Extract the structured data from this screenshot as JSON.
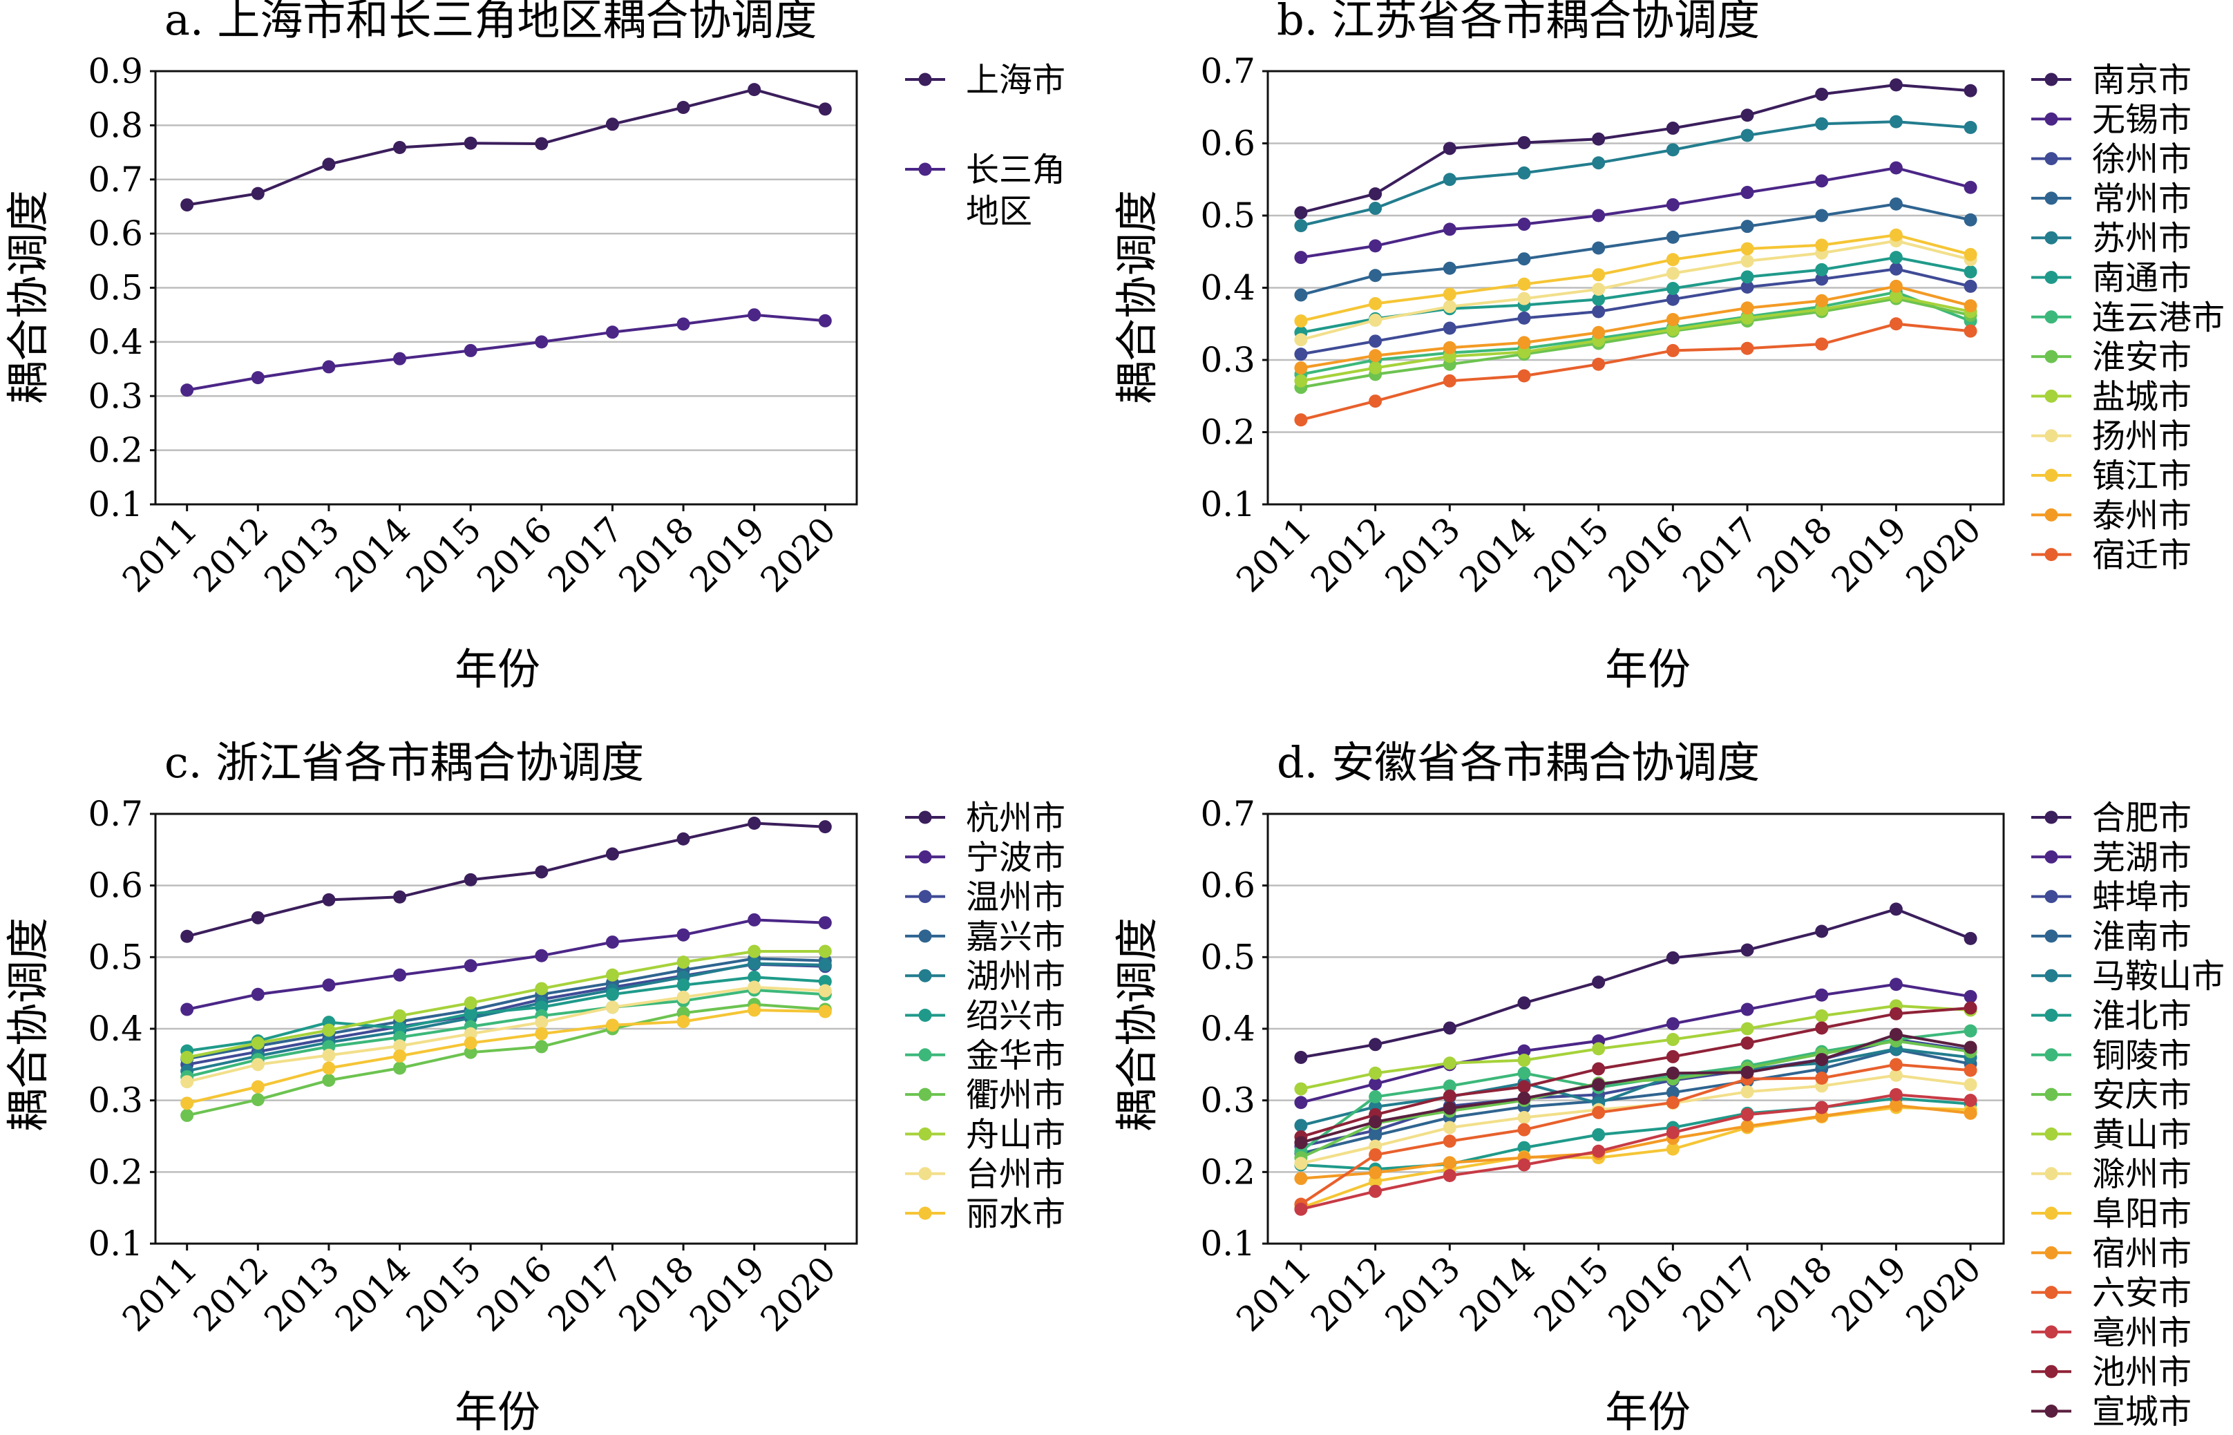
{
  "chart_data": [
    {
      "type": "line",
      "title": "a. 上海市和长三角地区耦合协调度",
      "xlabel": "年份",
      "ylabel": "耦合协调度",
      "x": [
        2011,
        2012,
        2013,
        2014,
        2015,
        2016,
        2017,
        2018,
        2019,
        2020
      ],
      "ylim": [
        0.1,
        0.9
      ],
      "yticks": [
        "0.1",
        "0.2",
        "0.3",
        "0.4",
        "0.5",
        "0.6",
        "0.7",
        "0.8",
        "0.9"
      ],
      "grid": true,
      "legend": "right",
      "series": [
        {
          "name": "上海市",
          "color": "#3b1e5c",
          "values": [
            0.653,
            0.674,
            0.728,
            0.759,
            0.767,
            0.766,
            0.802,
            0.833,
            0.866,
            0.83
          ]
        },
        {
          "name": "长三角地区",
          "color": "#4b2687",
          "values": [
            0.311,
            0.334,
            0.354,
            0.369,
            0.384,
            0.4,
            0.418,
            0.433,
            0.45,
            0.439
          ]
        }
      ]
    },
    {
      "type": "line",
      "title": "b. 江苏省各市耦合协调度",
      "xlabel": "年份",
      "ylabel": "耦合协调度",
      "x": [
        2011,
        2012,
        2013,
        2014,
        2015,
        2016,
        2017,
        2018,
        2019,
        2020
      ],
      "ylim": [
        0.1,
        0.7
      ],
      "yticks": [
        "0.1",
        "0.2",
        "0.3",
        "0.4",
        "0.5",
        "0.6",
        "0.7"
      ],
      "grid": true,
      "legend": "right",
      "series": [
        {
          "name": "南京市",
          "color": "#3b1e5c",
          "values": [
            0.504,
            0.53,
            0.593,
            0.601,
            0.606,
            0.621,
            0.639,
            0.668,
            0.681,
            0.673
          ]
        },
        {
          "name": "无锡市",
          "color": "#4b2687",
          "values": [
            0.442,
            0.458,
            0.481,
            0.488,
            0.5,
            0.515,
            0.532,
            0.548,
            0.566,
            0.539
          ]
        },
        {
          "name": "徐州市",
          "color": "#3f4b96",
          "values": [
            0.308,
            0.326,
            0.344,
            0.358,
            0.367,
            0.384,
            0.401,
            0.412,
            0.426,
            0.402
          ]
        },
        {
          "name": "常州市",
          "color": "#2f6490",
          "values": [
            0.39,
            0.417,
            0.427,
            0.44,
            0.455,
            0.47,
            0.485,
            0.5,
            0.516,
            0.494
          ]
        },
        {
          "name": "苏州市",
          "color": "#227d8e",
          "values": [
            0.486,
            0.51,
            0.55,
            0.559,
            0.573,
            0.591,
            0.611,
            0.627,
            0.63,
            0.622
          ]
        },
        {
          "name": "南通市",
          "color": "#1f9a8a",
          "values": [
            0.338,
            0.357,
            0.371,
            0.376,
            0.384,
            0.399,
            0.415,
            0.425,
            0.442,
            0.422
          ]
        },
        {
          "name": "连云港市",
          "color": "#3cb87a",
          "values": [
            0.28,
            0.3,
            0.31,
            0.316,
            0.33,
            0.345,
            0.36,
            0.374,
            0.394,
            0.354
          ]
        },
        {
          "name": "淮安市",
          "color": "#6cc350",
          "values": [
            0.262,
            0.28,
            0.294,
            0.308,
            0.323,
            0.34,
            0.354,
            0.367,
            0.385,
            0.362
          ]
        },
        {
          "name": "盐城市",
          "color": "#a6d23a",
          "values": [
            0.271,
            0.289,
            0.305,
            0.311,
            0.327,
            0.342,
            0.358,
            0.37,
            0.388,
            0.367
          ]
        },
        {
          "name": "扬州市",
          "color": "#f2df8a",
          "values": [
            0.328,
            0.355,
            0.374,
            0.385,
            0.398,
            0.42,
            0.437,
            0.448,
            0.465,
            0.439
          ]
        },
        {
          "name": "镇江市",
          "color": "#f5c535",
          "values": [
            0.354,
            0.378,
            0.391,
            0.405,
            0.418,
            0.439,
            0.454,
            0.459,
            0.473,
            0.446
          ]
        },
        {
          "name": "泰州市",
          "color": "#f39a24",
          "values": [
            0.289,
            0.306,
            0.317,
            0.324,
            0.338,
            0.356,
            0.372,
            0.382,
            0.402,
            0.375
          ]
        },
        {
          "name": "宿迁市",
          "color": "#e8602c",
          "values": [
            0.217,
            0.243,
            0.271,
            0.278,
            0.294,
            0.313,
            0.316,
            0.322,
            0.35,
            0.34
          ]
        }
      ]
    },
    {
      "type": "line",
      "title": "c. 浙江省各市耦合协调度",
      "xlabel": "年份",
      "ylabel": "耦合协调度",
      "x": [
        2011,
        2012,
        2013,
        2014,
        2015,
        2016,
        2017,
        2018,
        2019,
        2020
      ],
      "ylim": [
        0.1,
        0.7
      ],
      "yticks": [
        "0.1",
        "0.2",
        "0.3",
        "0.4",
        "0.5",
        "0.6",
        "0.7"
      ],
      "grid": true,
      "legend": "right",
      "series": [
        {
          "name": "杭州市",
          "color": "#3b1e5c",
          "values": [
            0.529,
            0.555,
            0.58,
            0.584,
            0.608,
            0.619,
            0.644,
            0.665,
            0.687,
            0.682
          ]
        },
        {
          "name": "宁波市",
          "color": "#4b2687",
          "values": [
            0.427,
            0.448,
            0.461,
            0.475,
            0.488,
            0.502,
            0.521,
            0.531,
            0.552,
            0.548
          ]
        },
        {
          "name": "温州市",
          "color": "#3f4b96",
          "values": [
            0.35,
            0.368,
            0.386,
            0.403,
            0.418,
            0.441,
            0.458,
            0.474,
            0.49,
            0.487
          ]
        },
        {
          "name": "嘉兴市",
          "color": "#2f6490",
          "values": [
            0.358,
            0.376,
            0.393,
            0.41,
            0.426,
            0.448,
            0.464,
            0.482,
            0.498,
            0.495
          ]
        },
        {
          "name": "湖州市",
          "color": "#227d8e",
          "values": [
            0.341,
            0.362,
            0.381,
            0.396,
            0.415,
            0.436,
            0.454,
            0.472,
            0.491,
            0.489
          ]
        },
        {
          "name": "绍兴市",
          "color": "#1f9a8a",
          "values": [
            0.369,
            0.383,
            0.409,
            0.401,
            0.421,
            0.43,
            0.448,
            0.461,
            0.472,
            0.466
          ]
        },
        {
          "name": "金华市",
          "color": "#3cb87a",
          "values": [
            0.333,
            0.357,
            0.375,
            0.388,
            0.403,
            0.418,
            0.43,
            0.439,
            0.454,
            0.448
          ]
        },
        {
          "name": "衢州市",
          "color": "#6cc350",
          "values": [
            0.279,
            0.301,
            0.328,
            0.345,
            0.367,
            0.375,
            0.4,
            0.422,
            0.434,
            0.427
          ]
        },
        {
          "name": "舟山市",
          "color": "#a6d23a",
          "values": [
            0.36,
            0.38,
            0.398,
            0.418,
            0.436,
            0.456,
            0.475,
            0.493,
            0.508,
            0.508
          ]
        },
        {
          "name": "台州市",
          "color": "#f2df8a",
          "values": [
            0.326,
            0.35,
            0.363,
            0.376,
            0.393,
            0.409,
            0.43,
            0.444,
            0.458,
            0.453
          ]
        },
        {
          "name": "丽水市",
          "color": "#f5c535",
          "values": [
            0.296,
            0.319,
            0.345,
            0.362,
            0.38,
            0.393,
            0.405,
            0.41,
            0.426,
            0.424
          ]
        }
      ]
    },
    {
      "type": "line",
      "title": "d. 安徽省各市耦合协调度",
      "xlabel": "年份",
      "ylabel": "耦合协调度",
      "x": [
        2011,
        2012,
        2013,
        2014,
        2015,
        2016,
        2017,
        2018,
        2019,
        2020
      ],
      "ylim": [
        0.1,
        0.7
      ],
      "yticks": [
        "0.1",
        "0.2",
        "0.3",
        "0.4",
        "0.5",
        "0.6",
        "0.7"
      ],
      "grid": true,
      "legend": "right",
      "series": [
        {
          "name": "合肥市",
          "color": "#3b1e5c",
          "values": [
            0.36,
            0.378,
            0.401,
            0.436,
            0.465,
            0.499,
            0.51,
            0.536,
            0.567,
            0.526
          ]
        },
        {
          "name": "芜湖市",
          "color": "#4b2687",
          "values": [
            0.297,
            0.323,
            0.35,
            0.369,
            0.383,
            0.407,
            0.427,
            0.447,
            0.462,
            0.445
          ]
        },
        {
          "name": "蚌埠市",
          "color": "#3f4b96",
          "values": [
            0.236,
            0.258,
            0.292,
            0.303,
            0.308,
            0.328,
            0.342,
            0.357,
            0.385,
            0.37
          ]
        },
        {
          "name": "淮南市",
          "color": "#2f6490",
          "values": [
            0.226,
            0.251,
            0.276,
            0.291,
            0.299,
            0.311,
            0.327,
            0.344,
            0.371,
            0.351
          ]
        },
        {
          "name": "马鞍山市",
          "color": "#227d8e",
          "values": [
            0.265,
            0.291,
            0.305,
            0.324,
            0.296,
            0.334,
            0.344,
            0.352,
            0.372,
            0.36
          ]
        },
        {
          "name": "淮北市",
          "color": "#1f9a8a",
          "values": [
            0.21,
            0.204,
            0.211,
            0.234,
            0.252,
            0.262,
            0.282,
            0.29,
            0.303,
            0.295
          ]
        },
        {
          "name": "铜陵市",
          "color": "#3cb87a",
          "values": [
            0.229,
            0.305,
            0.32,
            0.338,
            0.318,
            0.334,
            0.348,
            0.368,
            0.385,
            0.397
          ]
        },
        {
          "name": "安庆市",
          "color": "#6cc350",
          "values": [
            0.22,
            0.268,
            0.285,
            0.3,
            0.324,
            0.33,
            0.345,
            0.365,
            0.383,
            0.368
          ]
        },
        {
          "name": "黄山市",
          "color": "#a6d23a",
          "values": [
            0.316,
            0.338,
            0.352,
            0.356,
            0.372,
            0.385,
            0.4,
            0.418,
            0.432,
            0.426
          ]
        },
        {
          "name": "滁州市",
          "color": "#f2df8a",
          "values": [
            0.212,
            0.236,
            0.262,
            0.276,
            0.287,
            0.296,
            0.312,
            0.32,
            0.335,
            0.322
          ]
        },
        {
          "name": "阜阳市",
          "color": "#f5c535",
          "values": [
            0.15,
            0.187,
            0.204,
            0.221,
            0.22,
            0.232,
            0.262,
            0.277,
            0.29,
            0.287
          ]
        },
        {
          "name": "宿州市",
          "color": "#f39a24",
          "values": [
            0.191,
            0.199,
            0.213,
            0.22,
            0.226,
            0.247,
            0.264,
            0.278,
            0.293,
            0.282
          ]
        },
        {
          "name": "六安市",
          "color": "#e8602c",
          "values": [
            0.155,
            0.224,
            0.243,
            0.259,
            0.283,
            0.297,
            0.33,
            0.331,
            0.35,
            0.342
          ]
        },
        {
          "name": "亳州市",
          "color": "#c73b45",
          "values": [
            0.148,
            0.173,
            0.195,
            0.21,
            0.229,
            0.255,
            0.28,
            0.29,
            0.308,
            0.3
          ]
        },
        {
          "name": "池州市",
          "color": "#8f2238",
          "values": [
            0.249,
            0.28,
            0.306,
            0.319,
            0.344,
            0.361,
            0.38,
            0.401,
            0.421,
            0.429
          ]
        },
        {
          "name": "宣城市",
          "color": "#5a1f3f",
          "values": [
            0.241,
            0.27,
            0.289,
            0.303,
            0.322,
            0.338,
            0.339,
            0.357,
            0.392,
            0.374
          ]
        }
      ]
    }
  ]
}
